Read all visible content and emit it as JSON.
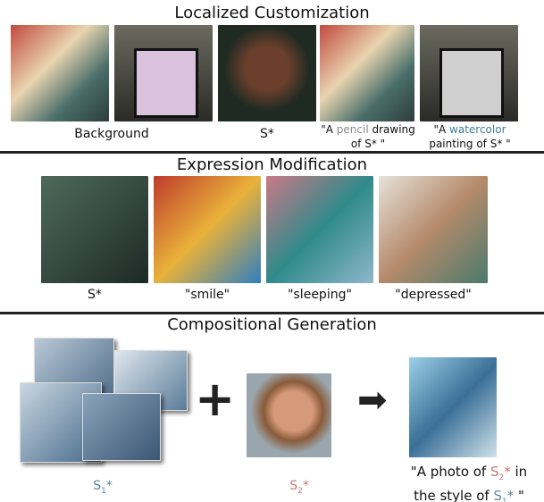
{
  "sections": [
    {
      "title": "Localized Customization",
      "captions": {
        "background": "Background",
        "subject": "S*",
        "pencil": {
          "pre": "\"A ",
          "colored": "pencil",
          "post": " drawing of S* \""
        },
        "watercolor": {
          "pre": "\"A ",
          "colored": "watercolor",
          "post": " painting of S* \""
        }
      }
    },
    {
      "title": "Expression Modification",
      "captions": [
        "S*",
        "\"smile\"",
        "\"sleeping\"",
        "\"depressed\""
      ]
    },
    {
      "title": "Compositional Generation",
      "captions": {
        "s1": "S",
        "s1_sub": "1",
        "s2": "S",
        "s2_sub": "2",
        "star": "*",
        "prompt": {
          "p1": "\"A photo of ",
          "p2": " in",
          "p3": "the style of ",
          "p4": " \""
        }
      },
      "symbols": {
        "plus": "+",
        "arrow": "➡"
      }
    }
  ],
  "colors": {
    "pencil": "#8a8a8a",
    "watercolor": "#3f7f98",
    "s1": "#5a86a4",
    "s2": "#c57a78"
  }
}
